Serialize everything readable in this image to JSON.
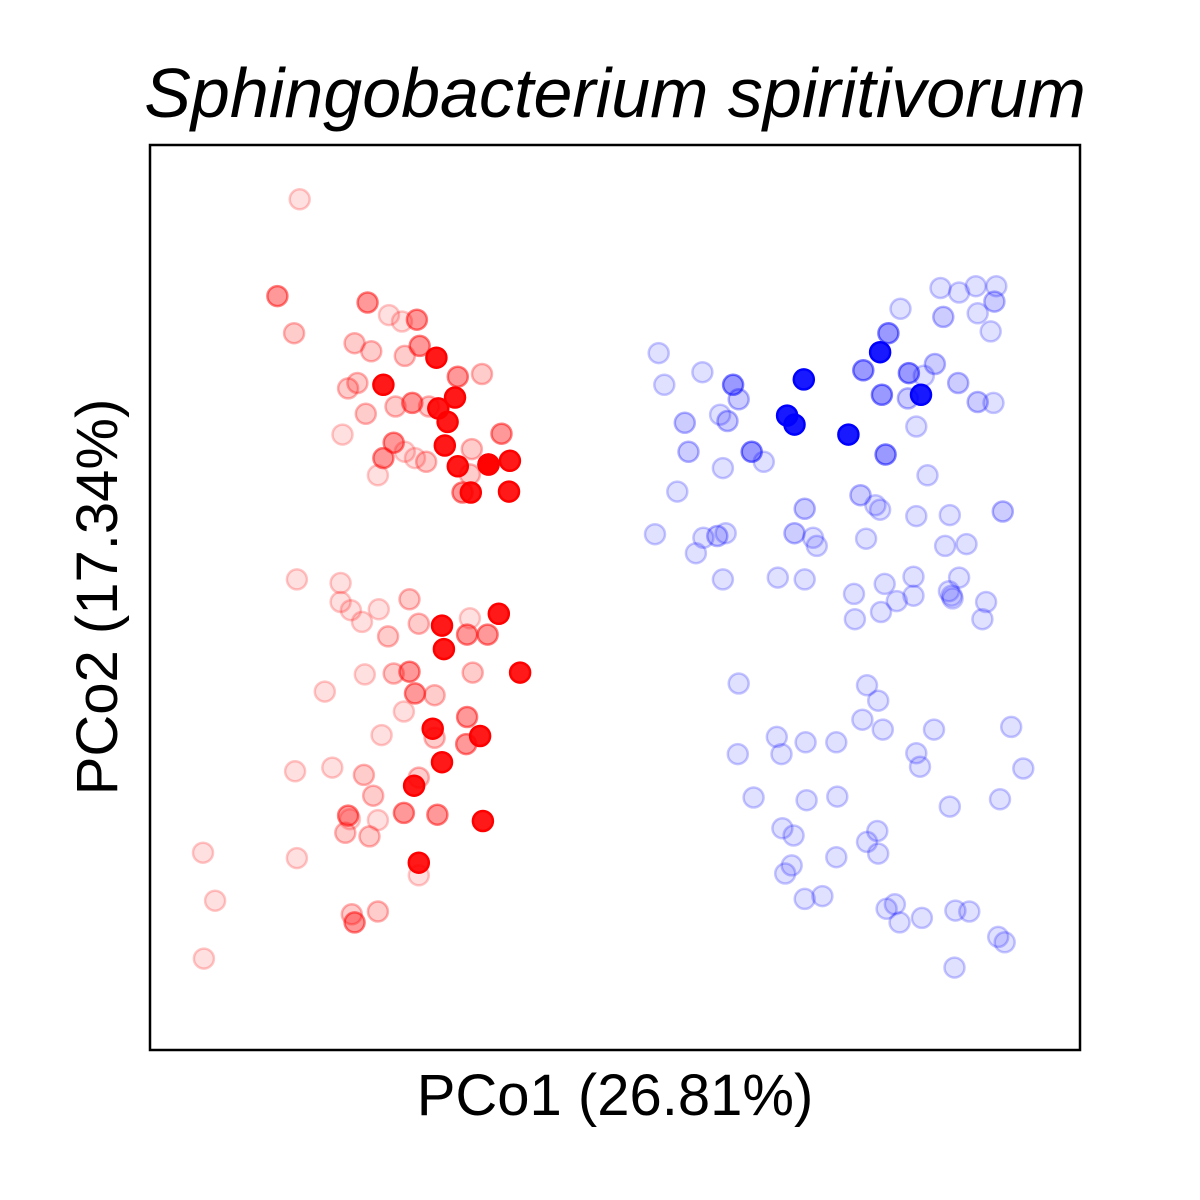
{
  "chart_data": {
    "type": "scatter",
    "title": "Sphingobacterium spiritivorum",
    "xlabel": "PCo1 (26.81%)",
    "ylabel": "PCo2 (17.34%)",
    "xlim": [
      0,
      100
    ],
    "ylim": [
      0,
      100
    ],
    "ticks": "none",
    "grid": false,
    "legend": "none",
    "series": [
      {
        "color": "#ff0000",
        "points": [
          [
            16.1,
            94.0
          ],
          [
            13.7,
            83.3
          ],
          [
            23.4,
            82.6
          ],
          [
            25.7,
            81.2
          ],
          [
            28.7,
            80.7
          ],
          [
            27.1,
            80.5
          ],
          [
            23.8,
            77.2
          ],
          [
            15.5,
            79.2
          ],
          [
            22.0,
            78.1
          ],
          [
            27.4,
            76.7
          ],
          [
            29.0,
            77.8
          ],
          [
            25.1,
            73.5
          ],
          [
            22.3,
            73.7
          ],
          [
            30.8,
            76.5
          ],
          [
            33.1,
            74.4
          ],
          [
            21.3,
            73.1
          ],
          [
            35.7,
            74.7
          ],
          [
            32.8,
            72.1
          ],
          [
            31.0,
            70.9
          ],
          [
            28.2,
            71.5
          ],
          [
            30.0,
            71.1
          ],
          [
            26.4,
            71.1
          ],
          [
            23.2,
            70.3
          ],
          [
            32.0,
            69.4
          ],
          [
            37.8,
            68.1
          ],
          [
            20.7,
            68.0
          ],
          [
            26.2,
            67.1
          ],
          [
            34.6,
            66.4
          ],
          [
            31.7,
            66.8
          ],
          [
            25.1,
            65.4
          ],
          [
            27.4,
            66.1
          ],
          [
            29.7,
            65.0
          ],
          [
            36.4,
            64.7
          ],
          [
            33.1,
            64.5
          ],
          [
            28.5,
            65.4
          ],
          [
            36.4,
            64.7
          ],
          [
            38.7,
            65.1
          ],
          [
            38.6,
            61.7
          ],
          [
            34.5,
            61.6
          ],
          [
            24.5,
            63.5
          ],
          [
            34.4,
            63.6
          ],
          [
            33.6,
            61.6
          ],
          [
            36.3,
            45.9
          ],
          [
            15.8,
            52.0
          ],
          [
            20.5,
            51.6
          ],
          [
            31.4,
            46.9
          ],
          [
            20.5,
            49.5
          ],
          [
            24.6,
            48.7
          ],
          [
            27.9,
            49.8
          ],
          [
            21.6,
            48.6
          ],
          [
            37.5,
            48.2
          ],
          [
            34.4,
            47.7
          ],
          [
            22.8,
            47.3
          ],
          [
            28.9,
            47.1
          ],
          [
            25.6,
            45.7
          ],
          [
            34.1,
            45.9
          ],
          [
            31.6,
            44.3
          ],
          [
            34.7,
            41.7
          ],
          [
            27.9,
            41.8
          ],
          [
            23.1,
            41.5
          ],
          [
            26.2,
            41.6
          ],
          [
            39.8,
            41.7
          ],
          [
            18.8,
            39.6
          ],
          [
            28.5,
            39.4
          ],
          [
            30.6,
            39.2
          ],
          [
            27.3,
            37.4
          ],
          [
            34.1,
            36.8
          ],
          [
            30.4,
            35.5
          ],
          [
            34.0,
            33.8
          ],
          [
            24.9,
            34.8
          ],
          [
            35.5,
            34.7
          ],
          [
            30.6,
            34.5
          ],
          [
            31.4,
            31.8
          ],
          [
            15.6,
            30.8
          ],
          [
            19.6,
            31.2
          ],
          [
            23.0,
            30.4
          ],
          [
            28.9,
            30.1
          ],
          [
            28.4,
            29.2
          ],
          [
            24.0,
            28.1
          ],
          [
            27.3,
            26.2
          ],
          [
            21.3,
            25.9
          ],
          [
            24.5,
            25.4
          ],
          [
            30.9,
            26.0
          ],
          [
            35.8,
            25.3
          ],
          [
            21.5,
            25.5
          ],
          [
            21.0,
            24.0
          ],
          [
            23.6,
            23.6
          ],
          [
            15.8,
            21.2
          ],
          [
            5.7,
            21.8
          ],
          [
            28.9,
            20.7
          ],
          [
            28.9,
            19.3
          ],
          [
            7.0,
            16.5
          ],
          [
            24.5,
            15.3
          ],
          [
            21.7,
            15.0
          ],
          [
            22.0,
            14.1
          ],
          [
            5.8,
            10.1
          ]
        ],
        "alpha": [
          0.12,
          0.4,
          0.4,
          0.12,
          0.4,
          0.12,
          0.2,
          0.2,
          0.2,
          0.2,
          0.4,
          0.9,
          0.2,
          0.9,
          0.4,
          0.2,
          0.2,
          0.9,
          0.9,
          0.4,
          0.2,
          0.2,
          0.2,
          0.9,
          0.4,
          0.12,
          0.4,
          0.2,
          0.9,
          0.4,
          0.12,
          0.2,
          0.9,
          0.9,
          0.12,
          0.9,
          0.9,
          0.9,
          0.9,
          0.12,
          0.2,
          0.4,
          0.4,
          0.12,
          0.12,
          0.9,
          0.12,
          0.12,
          0.2,
          0.12,
          0.9,
          0.12,
          0.12,
          0.2,
          0.2,
          0.4,
          0.9,
          0.2,
          0.4,
          0.12,
          0.2,
          0.9,
          0.12,
          0.4,
          0.2,
          0.12,
          0.4,
          0.9,
          0.4,
          0.12,
          0.9,
          0.2,
          0.9,
          0.12,
          0.12,
          0.2,
          0.2,
          0.9,
          0.2,
          0.4,
          0.4,
          0.12,
          0.4,
          0.9,
          0.12,
          0.2,
          0.2,
          0.12,
          0.12,
          0.9,
          0.12,
          0.12,
          0.2,
          0.2,
          0.4,
          0.12
        ]
      },
      {
        "color": "#0000ff",
        "points": [
          [
            88.8,
            84.4
          ],
          [
            91.0,
            84.4
          ],
          [
            85.0,
            84.2
          ],
          [
            87.0,
            83.7
          ],
          [
            90.8,
            82.7
          ],
          [
            80.7,
            81.9
          ],
          [
            89.0,
            81.4
          ],
          [
            85.3,
            81.0
          ],
          [
            79.4,
            79.2
          ],
          [
            90.4,
            79.4
          ],
          [
            54.7,
            77.0
          ],
          [
            78.5,
            77.1
          ],
          [
            76.7,
            75.1
          ],
          [
            84.4,
            75.8
          ],
          [
            83.2,
            74.5
          ],
          [
            81.6,
            74.8
          ],
          [
            59.4,
            74.9
          ],
          [
            70.3,
            74.1
          ],
          [
            86.9,
            73.7
          ],
          [
            62.7,
            73.5
          ],
          [
            55.3,
            73.5
          ],
          [
            63.3,
            71.9
          ],
          [
            82.9,
            72.4
          ],
          [
            78.7,
            72.4
          ],
          [
            81.5,
            72.0
          ],
          [
            90.7,
            71.5
          ],
          [
            89.0,
            71.6
          ],
          [
            68.5,
            70.1
          ],
          [
            57.5,
            69.3
          ],
          [
            62.1,
            69.5
          ],
          [
            69.3,
            69.1
          ],
          [
            61.3,
            70.2
          ],
          [
            82.4,
            68.9
          ],
          [
            75.1,
            68.0
          ],
          [
            57.9,
            66.1
          ],
          [
            64.7,
            66.1
          ],
          [
            66.0,
            65.0
          ],
          [
            61.6,
            64.3
          ],
          [
            79.1,
            65.8
          ],
          [
            83.6,
            63.5
          ],
          [
            76.4,
            61.3
          ],
          [
            56.7,
            61.7
          ],
          [
            70.4,
            59.8
          ],
          [
            78.5,
            59.7
          ],
          [
            78.0,
            60.2
          ],
          [
            82.4,
            59.0
          ],
          [
            86.0,
            59.1
          ],
          [
            91.7,
            59.5
          ],
          [
            69.3,
            57.1
          ],
          [
            61.9,
            57.1
          ],
          [
            54.3,
            57.0
          ],
          [
            59.5,
            56.6
          ],
          [
            61.0,
            56.8
          ],
          [
            71.3,
            56.6
          ],
          [
            77.0,
            56.5
          ],
          [
            87.8,
            55.9
          ],
          [
            71.7,
            55.7
          ],
          [
            85.5,
            55.7
          ],
          [
            58.7,
            54.9
          ],
          [
            61.6,
            52.0
          ],
          [
            67.5,
            52.2
          ],
          [
            70.4,
            52.0
          ],
          [
            82.1,
            52.3
          ],
          [
            79.0,
            51.5
          ],
          [
            87.0,
            52.2
          ],
          [
            75.7,
            50.4
          ],
          [
            86.2,
            50.2
          ],
          [
            82.1,
            50.2
          ],
          [
            89.9,
            49.5
          ],
          [
            80.3,
            49.6
          ],
          [
            85.9,
            50.7
          ],
          [
            86.3,
            49.9
          ],
          [
            78.6,
            48.4
          ],
          [
            75.8,
            47.6
          ],
          [
            89.5,
            47.6
          ],
          [
            77.1,
            40.3
          ],
          [
            63.3,
            40.5
          ],
          [
            78.3,
            38.6
          ],
          [
            76.6,
            36.5
          ],
          [
            84.3,
            35.4
          ],
          [
            78.8,
            35.4
          ],
          [
            92.6,
            35.7
          ],
          [
            67.4,
            34.6
          ],
          [
            73.8,
            34.0
          ],
          [
            70.5,
            34.0
          ],
          [
            63.2,
            32.7
          ],
          [
            67.9,
            32.7
          ],
          [
            82.4,
            32.8
          ],
          [
            82.8,
            31.3
          ],
          [
            93.9,
            31.1
          ],
          [
            64.9,
            27.9
          ],
          [
            73.9,
            28.0
          ],
          [
            70.6,
            27.6
          ],
          [
            86.0,
            26.9
          ],
          [
            91.4,
            27.7
          ],
          [
            68.0,
            24.5
          ],
          [
            69.2,
            23.7
          ],
          [
            78.2,
            24.2
          ],
          [
            77.1,
            23.0
          ],
          [
            69.0,
            20.4
          ],
          [
            68.3,
            19.5
          ],
          [
            73.8,
            21.3
          ],
          [
            78.3,
            21.7
          ],
          [
            72.3,
            17.0
          ],
          [
            70.4,
            16.7
          ],
          [
            80.1,
            16.1
          ],
          [
            79.2,
            15.6
          ],
          [
            86.6,
            15.4
          ],
          [
            88.1,
            15.3
          ],
          [
            83.0,
            14.6
          ],
          [
            80.6,
            14.1
          ],
          [
            91.2,
            12.5
          ],
          [
            91.9,
            11.9
          ],
          [
            86.5,
            9.1
          ]
        ],
        "alpha": [
          0.12,
          0.12,
          0.12,
          0.12,
          0.2,
          0.12,
          0.12,
          0.2,
          0.4,
          0.12,
          0.12,
          0.9,
          0.4,
          0.2,
          0.12,
          0.4,
          0.12,
          0.9,
          0.2,
          0.4,
          0.12,
          0.2,
          0.9,
          0.4,
          0.2,
          0.12,
          0.2,
          0.9,
          0.2,
          0.2,
          0.9,
          0.12,
          0.12,
          0.9,
          0.2,
          0.4,
          0.12,
          0.12,
          0.4,
          0.12,
          0.2,
          0.12,
          0.2,
          0.12,
          0.12,
          0.12,
          0.12,
          0.2,
          0.2,
          0.12,
          0.12,
          0.12,
          0.2,
          0.12,
          0.12,
          0.12,
          0.12,
          0.12,
          0.12,
          0.12,
          0.12,
          0.12,
          0.12,
          0.12,
          0.12,
          0.12,
          0.12,
          0.12,
          0.12,
          0.12,
          0.12,
          0.12,
          0.12,
          0.12,
          0.12,
          0.12,
          0.12,
          0.12,
          0.12,
          0.12,
          0.12,
          0.12,
          0.12,
          0.12,
          0.12,
          0.12,
          0.12,
          0.12,
          0.12,
          0.12,
          0.12,
          0.12,
          0.12,
          0.12,
          0.12,
          0.12,
          0.12,
          0.12,
          0.12,
          0.12,
          0.12,
          0.12,
          0.12,
          0.12,
          0.12,
          0.12,
          0.12,
          0.12,
          0.12,
          0.12,
          0.12,
          0.12,
          0.12,
          0.12
        ]
      }
    ]
  }
}
